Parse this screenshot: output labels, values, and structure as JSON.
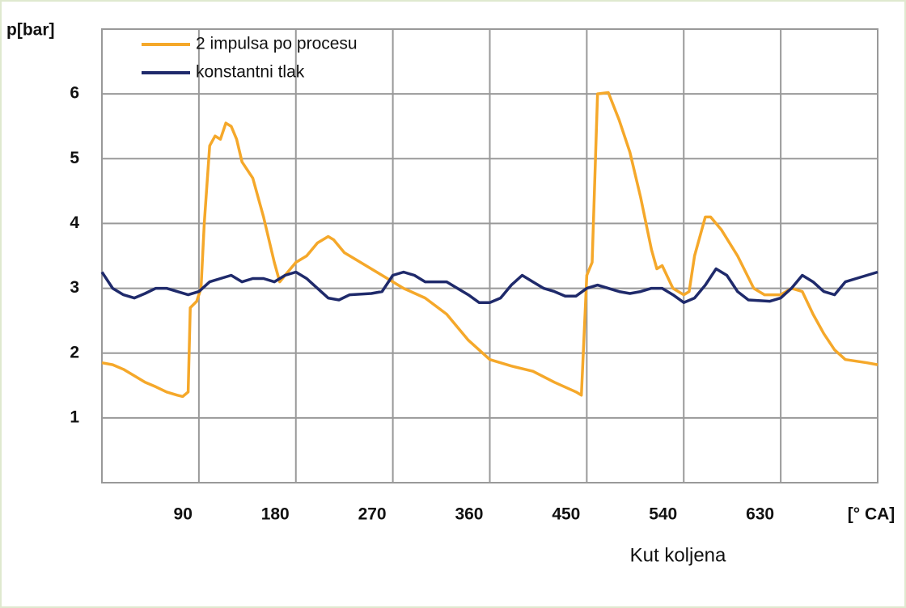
{
  "chart_data": {
    "type": "line",
    "y_axis_label": "p[bar]",
    "x_axis_label": "Kut koljena",
    "xlim": [
      0,
      720
    ],
    "ylim": [
      0,
      7
    ],
    "xticks": [
      90,
      180,
      270,
      360,
      450,
      540,
      630,
      {
        "value": 720,
        "label": "[° CA]"
      }
    ],
    "yticks": [
      1,
      2,
      3,
      4,
      5,
      6
    ],
    "grid": true,
    "legend": "top-left",
    "series": [
      {
        "name": "2 impulsa po procesu",
        "color": "#f5a82a",
        "x": [
          0,
          10,
          20,
          30,
          40,
          50,
          60,
          70,
          75,
          80,
          82,
          88,
          92,
          95,
          100,
          105,
          110,
          115,
          120,
          125,
          130,
          140,
          150,
          160,
          165,
          170,
          180,
          190,
          200,
          210,
          215,
          225,
          240,
          260,
          280,
          300,
          320,
          340,
          360,
          380,
          400,
          420,
          440,
          445,
          450,
          455,
          460,
          470,
          480,
          490,
          500,
          510,
          515,
          520,
          530,
          540,
          545,
          550,
          560,
          565,
          575,
          590,
          605,
          615,
          630,
          640,
          650,
          660,
          670,
          680,
          690,
          710,
          720
        ],
        "values": [
          1.85,
          1.82,
          1.75,
          1.65,
          1.55,
          1.48,
          1.4,
          1.35,
          1.33,
          1.4,
          2.7,
          2.8,
          3.0,
          4.0,
          5.2,
          5.35,
          5.3,
          5.55,
          5.5,
          5.3,
          4.95,
          4.7,
          4.1,
          3.4,
          3.1,
          3.2,
          3.4,
          3.5,
          3.7,
          3.8,
          3.75,
          3.55,
          3.4,
          3.2,
          3.0,
          2.85,
          2.6,
          2.2,
          1.9,
          1.8,
          1.72,
          1.55,
          1.4,
          1.35,
          3.2,
          3.4,
          6.0,
          6.02,
          5.6,
          5.1,
          4.4,
          3.6,
          3.3,
          3.35,
          3.0,
          2.9,
          2.95,
          3.5,
          4.1,
          4.1,
          3.9,
          3.5,
          3.0,
          2.9,
          2.9,
          3.0,
          2.95,
          2.6,
          2.3,
          2.05,
          1.9,
          1.85,
          1.82
        ]
      },
      {
        "name": "konstantni tlak",
        "color": "#1f2a6b",
        "x": [
          0,
          10,
          20,
          30,
          40,
          50,
          60,
          70,
          80,
          90,
          100,
          110,
          120,
          130,
          140,
          150,
          160,
          170,
          180,
          190,
          200,
          210,
          220,
          230,
          250,
          260,
          270,
          280,
          290,
          300,
          320,
          330,
          340,
          350,
          360,
          370,
          380,
          390,
          400,
          410,
          420,
          430,
          440,
          450,
          460,
          470,
          480,
          490,
          500,
          510,
          520,
          530,
          540,
          550,
          560,
          570,
          580,
          590,
          600,
          620,
          630,
          640,
          650,
          660,
          670,
          680,
          690,
          700,
          720
        ],
        "values": [
          3.25,
          3.0,
          2.9,
          2.85,
          2.92,
          3.0,
          3.0,
          2.95,
          2.9,
          2.95,
          3.1,
          3.15,
          3.2,
          3.1,
          3.15,
          3.15,
          3.1,
          3.2,
          3.25,
          3.15,
          3.0,
          2.85,
          2.82,
          2.9,
          2.92,
          2.95,
          3.2,
          3.25,
          3.2,
          3.1,
          3.1,
          3.0,
          2.9,
          2.78,
          2.78,
          2.85,
          3.05,
          3.2,
          3.1,
          3.0,
          2.95,
          2.88,
          2.88,
          3.0,
          3.05,
          3.0,
          2.95,
          2.92,
          2.95,
          3.0,
          3.0,
          2.9,
          2.78,
          2.85,
          3.05,
          3.3,
          3.2,
          2.95,
          2.82,
          2.8,
          2.85,
          3.0,
          3.2,
          3.1,
          2.95,
          2.9,
          3.1,
          3.15,
          3.25
        ]
      }
    ]
  }
}
